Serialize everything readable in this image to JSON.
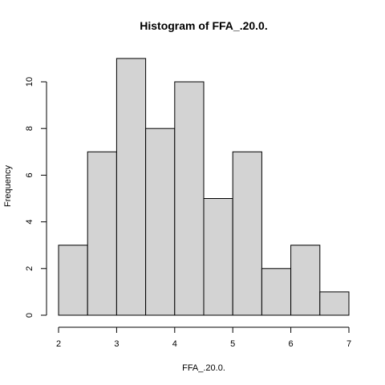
{
  "chart_data": {
    "type": "bar",
    "title": "Histogram of FFA_.20.0.",
    "xlabel": "FFA_.20.0.",
    "ylabel": "Frequency",
    "bins": [
      {
        "x0": 2.0,
        "x1": 2.5,
        "count": 3
      },
      {
        "x0": 2.5,
        "x1": 3.0,
        "count": 7
      },
      {
        "x0": 3.0,
        "x1": 3.5,
        "count": 11
      },
      {
        "x0": 3.5,
        "x1": 4.0,
        "count": 8
      },
      {
        "x0": 4.0,
        "x1": 4.5,
        "count": 10
      },
      {
        "x0": 4.5,
        "x1": 5.0,
        "count": 5
      },
      {
        "x0": 5.0,
        "x1": 5.5,
        "count": 7
      },
      {
        "x0": 5.5,
        "x1": 6.0,
        "count": 2
      },
      {
        "x0": 6.0,
        "x1": 6.5,
        "count": 3
      },
      {
        "x0": 6.5,
        "x1": 7.0,
        "count": 1
      }
    ],
    "xlim": [
      2,
      7
    ],
    "ylim": [
      0,
      11
    ],
    "xticks": [
      "2",
      "3",
      "4",
      "5",
      "6",
      "7"
    ],
    "yticks": [
      "0",
      "2",
      "4",
      "6",
      "8",
      "10"
    ],
    "grid": false,
    "legend": "none"
  }
}
